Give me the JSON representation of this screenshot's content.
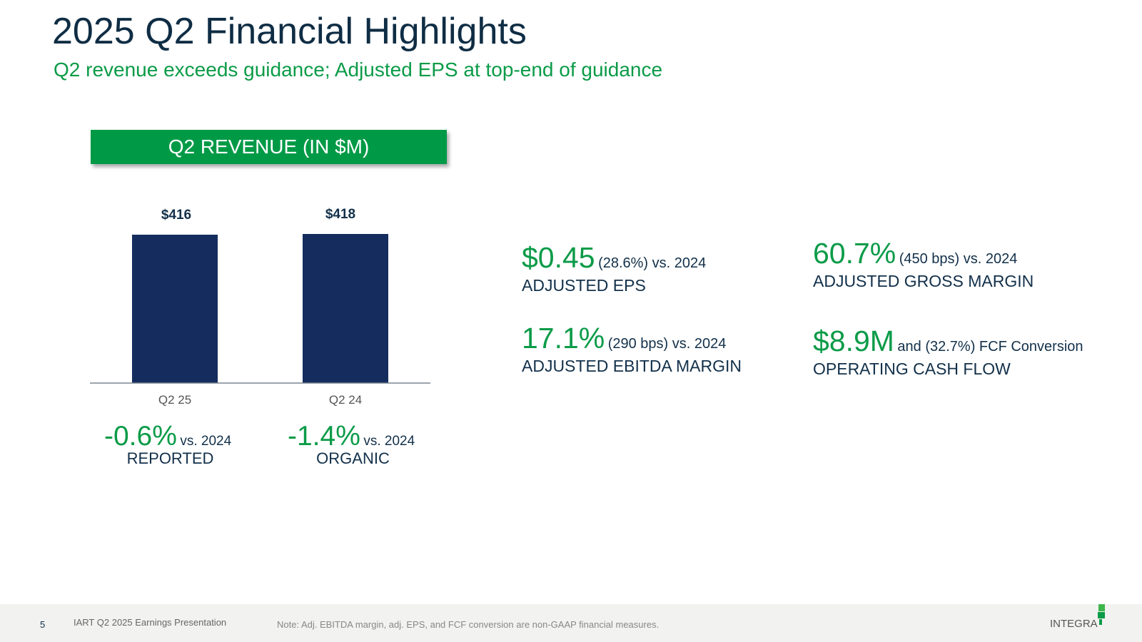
{
  "title": "2025 Q2 Financial Highlights",
  "subtitle": "Q2 revenue exceeds guidance; Adjusted EPS at top-end of guidance",
  "chart_data": {
    "type": "bar",
    "title": "Q2 REVENUE (IN $M)",
    "categories": [
      "Q2 25",
      "Q2 24"
    ],
    "values": [
      416,
      418
    ],
    "data_labels": [
      "$416",
      "$418"
    ],
    "ylim": [
      0,
      520
    ],
    "grid": false,
    "bar_color": "#152c5e"
  },
  "revenue_stats": [
    {
      "value": "-0.6%",
      "suffix": "vs. 2024",
      "label": "REPORTED"
    },
    {
      "value": "-1.4%",
      "suffix": "vs. 2024",
      "label": "ORGANIC"
    }
  ],
  "metrics": [
    {
      "value": "$0.45",
      "detail": "(28.6%) vs. 2024",
      "label": "ADJUSTED EPS"
    },
    {
      "value": "60.7%",
      "detail": "(450 bps) vs. 2024",
      "label": "ADJUSTED GROSS MARGIN"
    },
    {
      "value": "17.1%",
      "detail": "(290 bps) vs. 2024",
      "label": "ADJUSTED EBITDA MARGIN"
    },
    {
      "value": "$8.9M",
      "detail": "and (32.7%)  FCF Conversion",
      "label": "OPERATING CASH FLOW"
    }
  ],
  "footer": {
    "page": "5",
    "presentation": "IART Q2 2025 Earnings Presentation",
    "note": "Note: Adj. EBITDA margin, adj. EPS, and FCF conversion are non-GAAP financial measures.",
    "logo": "INTEGRA"
  },
  "colors": {
    "green": "#009a46",
    "navy": "#152c5e",
    "text": "#12304a"
  }
}
